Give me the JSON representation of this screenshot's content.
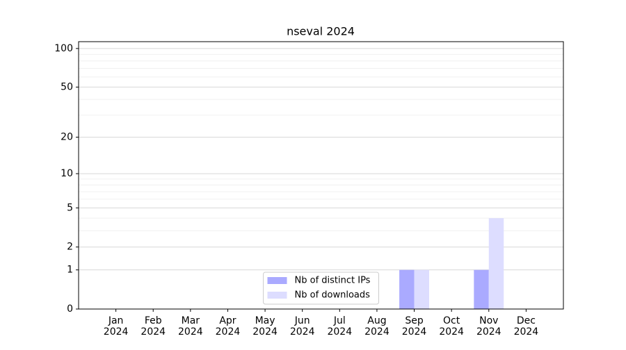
{
  "chart_data": {
    "type": "bar",
    "title": "nseval 2024",
    "categories": [
      "Jan\n2024",
      "Feb\n2024",
      "Mar\n2024",
      "Apr\n2024",
      "May\n2024",
      "Jun\n2024",
      "Jul\n2024",
      "Aug\n2024",
      "Sep\n2024",
      "Oct\n2024",
      "Nov\n2024",
      "Dec\n2024"
    ],
    "series": [
      {
        "name": "Nb of distinct IPs",
        "color": "#aaaaff",
        "values": [
          0,
          0,
          0,
          0,
          0,
          0,
          0,
          0,
          1,
          0,
          1,
          0
        ]
      },
      {
        "name": "Nb of downloads",
        "color": "#ddddff",
        "values": [
          0,
          0,
          0,
          0,
          0,
          0,
          0,
          0,
          1,
          0,
          4,
          0
        ]
      }
    ],
    "yscale": "log1p",
    "ylim": [
      0,
      113
    ],
    "yticks": [
      0,
      1,
      2,
      5,
      10,
      20,
      50,
      100
    ],
    "yminorticks": [
      3,
      4,
      6,
      7,
      8,
      9,
      30,
      40,
      60,
      70,
      80,
      90
    ],
    "grid": true,
    "legend": "lower center"
  }
}
